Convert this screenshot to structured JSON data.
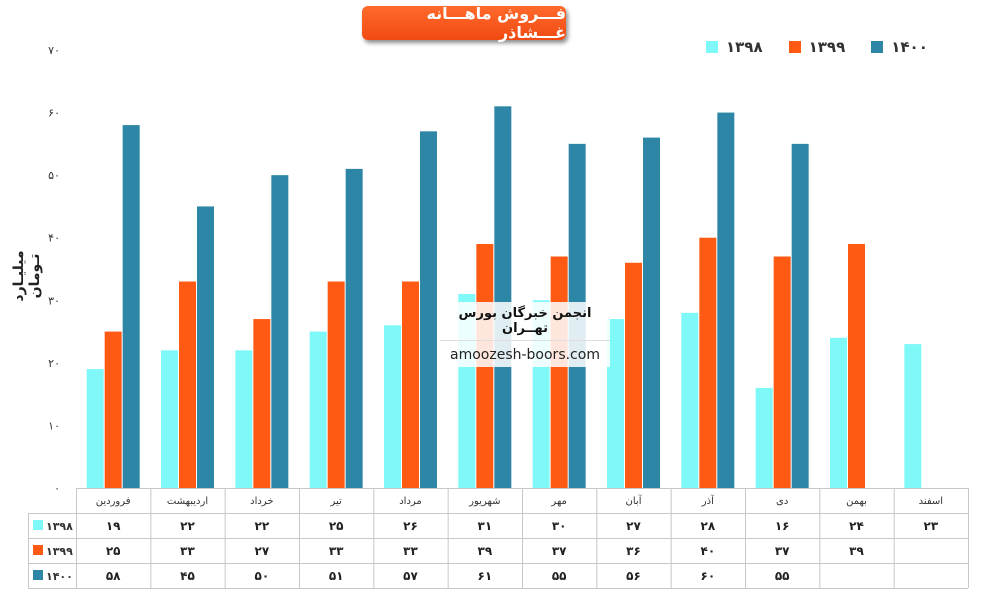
{
  "title": "فـــروش ماهـــانه غـــشاذر",
  "watermark": {
    "line1": "انجمن خبرگان بورس تهــران",
    "line2": "amoozesh-boors.com"
  },
  "chart_data": {
    "type": "bar",
    "ylabel": "میلیـارد تـومان",
    "ylim": [
      0,
      70
    ],
    "yticks": [
      "۰",
      "۱۰",
      "۲۰",
      "۳۰",
      "۴۰",
      "۵۰",
      "۶۰",
      "۷۰"
    ],
    "ytick_values": [
      0,
      10,
      20,
      30,
      40,
      50,
      60,
      70
    ],
    "legend_position": "top-right",
    "grid": false,
    "categories": [
      "فروردین",
      "اردیبهشت",
      "خرداد",
      "تیر",
      "مرداد",
      "شهریور",
      "مهر",
      "آبان",
      "آذر",
      "دی",
      "بهمن",
      "اسفند"
    ],
    "series": [
      {
        "name": "۱۳۹۸",
        "color": "#7ff8f8",
        "values": [
          19,
          22,
          22,
          25,
          26,
          31,
          30,
          27,
          28,
          16,
          24,
          23
        ],
        "labels": [
          "۱۹",
          "۲۲",
          "۲۲",
          "۲۵",
          "۲۶",
          "۳۱",
          "۳۰",
          "۲۷",
          "۲۸",
          "۱۶",
          "۲۴",
          "۲۳"
        ]
      },
      {
        "name": "۱۳۹۹",
        "color": "#ff5a14",
        "values": [
          25,
          33,
          27,
          33,
          33,
          39,
          37,
          36,
          40,
          37,
          39,
          null
        ],
        "labels": [
          "۲۵",
          "۳۳",
          "۲۷",
          "۳۳",
          "۳۳",
          "۳۹",
          "۳۷",
          "۳۶",
          "۴۰",
          "۳۷",
          "۳۹",
          ""
        ]
      },
      {
        "name": "۱۴۰۰",
        "color": "#2e86a6",
        "values": [
          58,
          45,
          50,
          51,
          57,
          61,
          55,
          56,
          60,
          55,
          null,
          null
        ],
        "labels": [
          "۵۸",
          "۴۵",
          "۵۰",
          "۵۱",
          "۵۷",
          "۶۱",
          "۵۵",
          "۵۶",
          "۶۰",
          "۵۵",
          "",
          ""
        ]
      }
    ]
  }
}
